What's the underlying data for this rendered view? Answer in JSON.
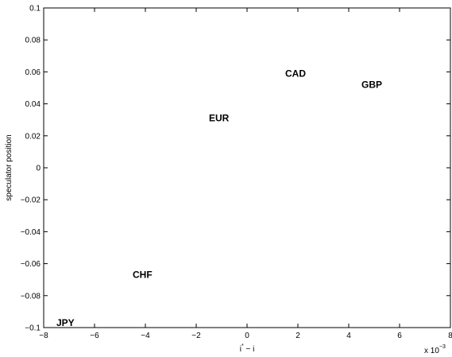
{
  "chart_data": {
    "type": "scatter",
    "title": "",
    "xlabel": "i* − i",
    "xlabel_base": "i",
    "xlabel_sup": "*",
    "xlabel_rest": " − i",
    "ylabel": "speculator position",
    "x_multiplier": "x 10",
    "x_multiplier_exp": "−3",
    "xlim": [
      -8,
      8
    ],
    "ylim": [
      -0.1,
      0.1
    ],
    "xticks": [
      -8,
      -6,
      -4,
      -2,
      0,
      2,
      4,
      6,
      8
    ],
    "xtick_labels": [
      "−8",
      "−6",
      "−4",
      "−2",
      "0",
      "2",
      "4",
      "6",
      "8"
    ],
    "yticks": [
      -0.1,
      -0.08,
      -0.06,
      -0.04,
      -0.02,
      0,
      0.02,
      0.04,
      0.06,
      0.08,
      0.1
    ],
    "ytick_labels": [
      "−0.1",
      "−0.08",
      "−0.06",
      "−0.04",
      "−0.02",
      "0",
      "0.02",
      "0.04",
      "0.06",
      "0.08",
      "0.1"
    ],
    "grid": false,
    "points": [
      {
        "label": "CAD",
        "x": 1.5,
        "y": 0.059
      },
      {
        "label": "GBP",
        "x": 4.5,
        "y": 0.052
      },
      {
        "label": "EUR",
        "x": -1.5,
        "y": 0.031
      },
      {
        "label": "CHF",
        "x": -4.5,
        "y": -0.067
      },
      {
        "label": "JPY",
        "x": -7.5,
        "y": -0.097
      }
    ]
  }
}
